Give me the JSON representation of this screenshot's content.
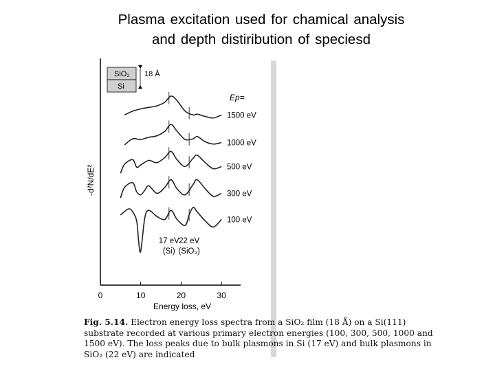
{
  "slide": {
    "title_line1": "Plasma  excitation  used  for  chamical  analysis",
    "title_line2": "and depth distiribution of speciesd"
  },
  "chart_data": {
    "type": "line",
    "xlabel": "Energy  loss, eV",
    "ylabel": "-d²N/dE²",
    "xlim": [
      0,
      30
    ],
    "xticks": [
      0,
      10,
      20,
      30
    ],
    "grid": false,
    "legend_title": "Ep=",
    "series": [
      {
        "name": "1500 eV",
        "x": [
          6,
          8,
          10,
          12,
          14,
          16,
          17.5,
          19,
          21,
          23,
          24,
          26,
          28,
          30
        ],
        "y": [
          0.35,
          0.6,
          0.75,
          0.85,
          0.95,
          1.2,
          1.6,
          1.3,
          0.6,
          0.35,
          0.4,
          0.25,
          0.15,
          0.35
        ]
      },
      {
        "name": "1000 eV",
        "x": [
          6,
          8,
          10,
          12,
          14,
          16,
          17.5,
          19,
          21,
          23,
          24,
          26,
          28,
          30
        ],
        "y": [
          0.1,
          0.5,
          0.45,
          0.6,
          0.7,
          1.0,
          1.45,
          1.0,
          0.45,
          0.5,
          0.65,
          0.3,
          0.15,
          0.25
        ]
      },
      {
        "name": "500 eV",
        "x": [
          5,
          6,
          8,
          9,
          10,
          12,
          14,
          16,
          17.5,
          19,
          21,
          23,
          24,
          26,
          28,
          30
        ],
        "y": [
          -0.1,
          0.5,
          0.8,
          0.3,
          0.45,
          0.75,
          0.6,
          0.95,
          1.35,
          0.8,
          0.35,
          0.9,
          1.1,
          0.6,
          0.2,
          0.35
        ]
      },
      {
        "name": "300 eV",
        "x": [
          5,
          6,
          8,
          9,
          10,
          11,
          12,
          14,
          16,
          17.5,
          19,
          21,
          23,
          24,
          26,
          28,
          30
        ],
        "y": [
          0.0,
          0.7,
          1.0,
          0.4,
          0.2,
          0.5,
          0.8,
          0.3,
          0.7,
          1.2,
          0.6,
          0.2,
          0.9,
          1.2,
          0.6,
          0.1,
          0.3
        ]
      },
      {
        "name": "100 eV",
        "x": [
          5,
          7,
          8,
          9,
          9.5,
          10,
          11,
          12,
          14,
          16,
          17.5,
          19,
          21,
          22,
          23,
          24,
          26,
          28,
          30
        ],
        "y": [
          0.6,
          1.0,
          0.8,
          0.2,
          -1.2,
          -1.8,
          0.4,
          0.9,
          0.5,
          0.3,
          0.9,
          0.3,
          -0.1,
          0.6,
          1.1,
          0.8,
          0.2,
          -0.2,
          0.3
        ]
      }
    ],
    "annotations": [
      {
        "x": 17,
        "label_line1": "17 eV",
        "label_line2": "(Si)"
      },
      {
        "x": 22,
        "label_line1": "22 eV",
        "label_line2": "(SiO₂)"
      }
    ],
    "inset": {
      "layer_top": "SiO₂",
      "layer_bottom": "Si",
      "thickness": "18 Å"
    }
  },
  "caption": {
    "label": "Fig. 5.14.",
    "text": "Electron energy loss spectra from a SiO₂ film (18 Å) on a Si(111) substrate recorded at various primary electron energies (100, 300, 500, 1000 and 1500 eV). The loss peaks due to bulk plasmons in Si (17 eV) and bulk plasmons in SiO₂ (22 eV) are indicated"
  }
}
